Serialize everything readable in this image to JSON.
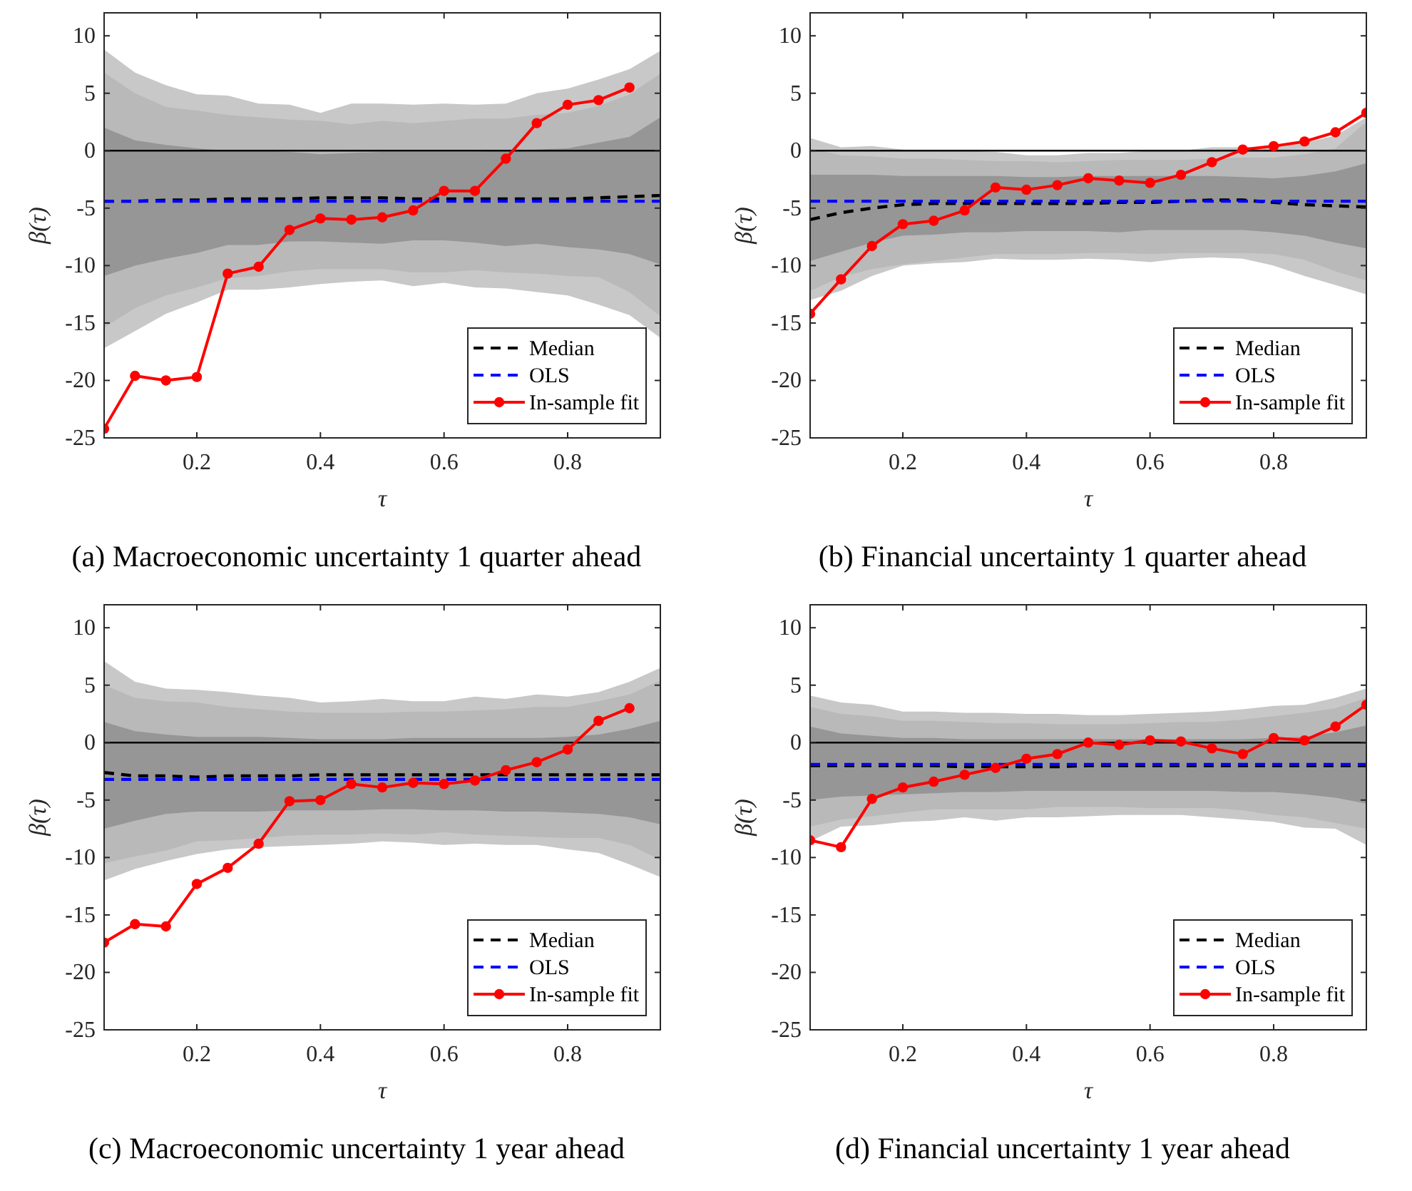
{
  "chart_data": [
    {
      "type": "line",
      "title": "(a) Macroeconomic uncertainty 1 quarter ahead",
      "xlabel": "τ",
      "ylabel": "β(τ)",
      "x": [
        0.05,
        0.1,
        0.15,
        0.2,
        0.25,
        0.3,
        0.35,
        0.4,
        0.45,
        0.5,
        0.55,
        0.6,
        0.65,
        0.7,
        0.75,
        0.8,
        0.85,
        0.9,
        0.95
      ],
      "xlim": [
        0.05,
        0.95
      ],
      "xticks": [
        0.2,
        0.4,
        0.6,
        0.8
      ],
      "ylim": [
        -25,
        12
      ],
      "yticks": [
        -25,
        -20,
        -15,
        -10,
        -5,
        0,
        5,
        10
      ],
      "grid": false,
      "legend": "bottom right",
      "ref_lines": [
        {
          "axis": "y",
          "value": 0,
          "color": "#000000"
        }
      ],
      "series": [
        {
          "color": "#c8c8c8",
          "values": [
            null,
            null,
            null,
            null,
            null,
            null,
            null,
            null,
            null,
            null,
            null,
            null,
            null,
            null,
            null,
            null,
            null,
            null,
            null
          ],
          "lower": [
            -17.2,
            -15.7,
            -14.2,
            -13.2,
            -12.1,
            -12.1,
            -11.9,
            -11.6,
            -11.4,
            -11.3,
            -11.8,
            -11.5,
            -11.9,
            -12,
            -12.3,
            -12.6,
            -13.4,
            -14.3,
            -16.3
          ],
          "upper": [
            8.8,
            6.8,
            5.7,
            4.9,
            4.8,
            4.1,
            4,
            3.3,
            4.1,
            4.1,
            4,
            4.1,
            4,
            4.1,
            5,
            5.4,
            6.2,
            7.1,
            8.7
          ]
        },
        {
          "color": "#b9b9b9",
          "values": [
            null,
            null,
            null,
            null,
            null,
            null,
            null,
            null,
            null,
            null,
            null,
            null,
            null,
            null,
            null,
            null,
            null,
            null,
            null
          ],
          "lower": [
            -15.4,
            -13.7,
            -12.6,
            -11.9,
            -11.1,
            -10.9,
            -10.5,
            -10.3,
            -10.3,
            -10.3,
            -10.6,
            -10.6,
            -10.4,
            -10.6,
            -10.7,
            -10.9,
            -11,
            -12.3,
            -14.4
          ],
          "upper": [
            6.8,
            5,
            3.8,
            3.5,
            3.1,
            2.9,
            2.7,
            2.6,
            2.3,
            2.6,
            2.4,
            2.6,
            2.8,
            2.8,
            3.1,
            3.3,
            3.9,
            4.9,
            6.7
          ]
        },
        {
          "color": "#969696",
          "values": [
            null,
            null,
            null,
            null,
            null,
            null,
            null,
            null,
            null,
            null,
            null,
            null,
            null,
            null,
            null,
            null,
            null,
            null,
            null
          ],
          "lower": [
            -10.9,
            -10,
            -9.4,
            -8.9,
            -8.2,
            -8.2,
            -7.9,
            -7.9,
            -8,
            -8.1,
            -7.8,
            -7.8,
            -8,
            -8.3,
            -8.1,
            -8.4,
            -8.6,
            -9,
            -9.9
          ],
          "upper": [
            2,
            0.9,
            0.5,
            0.2,
            0,
            0,
            -0.1,
            -0.3,
            -0.2,
            -0.1,
            -0.1,
            -0.1,
            -0.1,
            0,
            0.1,
            0.2,
            0.7,
            1.2,
            2.9
          ]
        },
        {
          "name": "Median",
          "color": "#000000",
          "line_style": "dashed",
          "marker": "none",
          "values": [
            -4.4,
            -4.4,
            -4.3,
            -4.3,
            -4.2,
            -4.2,
            -4.2,
            -4.1,
            -4.1,
            -4.1,
            -4.2,
            -4.2,
            -4.2,
            -4.2,
            -4.2,
            -4.2,
            -4.1,
            -4.0,
            -3.9
          ]
        },
        {
          "name": "OLS",
          "color": "#0000ff",
          "line_style": "dashed",
          "marker": "none",
          "values": [
            -4.4,
            -4.4,
            -4.4,
            -4.4,
            -4.4,
            -4.4,
            -4.4,
            -4.4,
            -4.4,
            -4.4,
            -4.4,
            -4.4,
            -4.4,
            -4.4,
            -4.4,
            -4.4,
            -4.4,
            -4.4,
            -4.4
          ]
        },
        {
          "name": "In-sample fit",
          "color": "#ff0000",
          "line_style": "solid",
          "marker": "circle",
          "values": [
            -24.2,
            -19.6,
            -20.0,
            -19.7,
            -10.7,
            -10.1,
            -6.9,
            -5.9,
            -6.0,
            -5.8,
            -5.2,
            -3.5,
            -3.5,
            -0.7,
            2.4,
            4.0,
            4.4,
            5.5,
            null
          ]
        }
      ]
    },
    {
      "type": "line",
      "title": "(b) Financial uncertainty 1 quarter ahead",
      "xlabel": "τ",
      "ylabel": "β(τ)",
      "x": [
        0.05,
        0.1,
        0.15,
        0.2,
        0.25,
        0.3,
        0.35,
        0.4,
        0.45,
        0.5,
        0.55,
        0.6,
        0.65,
        0.7,
        0.75,
        0.8,
        0.85,
        0.9,
        0.95
      ],
      "xlim": [
        0.05,
        0.95
      ],
      "xticks": [
        0.2,
        0.4,
        0.6,
        0.8
      ],
      "ylim": [
        -25,
        12
      ],
      "yticks": [
        -25,
        -20,
        -15,
        -10,
        -5,
        0,
        5,
        10
      ],
      "grid": false,
      "legend": "bottom right",
      "ref_lines": [
        {
          "axis": "y",
          "value": 0,
          "color": "#000000"
        }
      ],
      "series": [
        {
          "color": "#c8c8c8",
          "values": [
            null,
            null,
            null,
            null,
            null,
            null,
            null,
            null,
            null,
            null,
            null,
            null,
            null,
            null,
            null,
            null,
            null,
            null,
            null
          ],
          "lower": [
            -13,
            -12.2,
            -10.9,
            -10,
            -9.8,
            -9.7,
            -9.4,
            -9.5,
            -9.5,
            -9.4,
            -9.5,
            -9.7,
            -9.4,
            -9.3,
            -9.4,
            -10,
            -10.9,
            -11.7,
            -12.5
          ],
          "upper": [
            1.1,
            0.3,
            0.4,
            0.1,
            0,
            0,
            -0.1,
            -0.4,
            -0.4,
            -0.2,
            -0.2,
            0,
            0,
            0.3,
            0.3,
            0.4,
            0.7,
            1.3,
            2.9
          ]
        },
        {
          "color": "#b9b9b9",
          "values": [
            null,
            null,
            null,
            null,
            null,
            null,
            null,
            null,
            null,
            null,
            null,
            null,
            null,
            null,
            null,
            null,
            null,
            null,
            null
          ],
          "lower": [
            -12.2,
            -11,
            -10.3,
            -9.9,
            -9.6,
            -9.3,
            -9,
            -9,
            -9,
            -8.9,
            -8.9,
            -9,
            -8.9,
            -8.9,
            -8.9,
            -9,
            -9.5,
            -10.5,
            -11.3
          ],
          "upper": [
            0.2,
            -0.4,
            -0.5,
            -0.7,
            -0.7,
            -0.8,
            -0.9,
            -0.9,
            -1,
            -0.9,
            -0.8,
            -0.8,
            -0.8,
            -0.7,
            -0.6,
            -0.6,
            -0.3,
            0.2,
            2.5
          ]
        },
        {
          "color": "#969696",
          "values": [
            null,
            null,
            null,
            null,
            null,
            null,
            null,
            null,
            null,
            null,
            null,
            null,
            null,
            null,
            null,
            null,
            null,
            null,
            null
          ],
          "lower": [
            -9.6,
            -8.8,
            -8,
            -7.4,
            -7.3,
            -7.1,
            -7.1,
            -7,
            -7,
            -7,
            -7.1,
            -6.9,
            -6.9,
            -6.9,
            -6.9,
            -7.1,
            -7.4,
            -8,
            -8.5
          ],
          "upper": [
            -2.1,
            -2.1,
            -2.1,
            -2.2,
            -2.2,
            -2.2,
            -2.2,
            -2.3,
            -2.3,
            -2.2,
            -2.2,
            -2.2,
            -2.2,
            -2.2,
            -2.3,
            -2.4,
            -2.2,
            -1.8,
            -1.1
          ]
        },
        {
          "name": "Median",
          "color": "#000000",
          "line_style": "dashed",
          "marker": "none",
          "values": [
            -6,
            -5.4,
            -5,
            -4.7,
            -4.6,
            -4.6,
            -4.6,
            -4.6,
            -4.6,
            -4.6,
            -4.5,
            -4.5,
            -4.4,
            -4.3,
            -4.3,
            -4.5,
            -4.7,
            -4.8,
            -4.9
          ]
        },
        {
          "name": "OLS",
          "color": "#0000ff",
          "line_style": "dashed",
          "marker": "none",
          "values": [
            -4.4,
            -4.4,
            -4.4,
            -4.4,
            -4.4,
            -4.4,
            -4.4,
            -4.4,
            -4.4,
            -4.4,
            -4.4,
            -4.4,
            -4.4,
            -4.4,
            -4.4,
            -4.4,
            -4.4,
            -4.4,
            -4.4
          ]
        },
        {
          "name": "In-sample fit",
          "color": "#ff0000",
          "line_style": "solid",
          "marker": "circle",
          "values": [
            -14.2,
            -11.2,
            -8.3,
            -6.4,
            -6.1,
            -5.2,
            -3.2,
            -3.4,
            -3.0,
            -2.4,
            -2.6,
            -2.8,
            -2.1,
            -1.0,
            0.1,
            0.4,
            0.8,
            1.6,
            3.3
          ]
        }
      ]
    },
    {
      "type": "line",
      "title": "(c) Macroeconomic uncertainty 1 year ahead",
      "xlabel": "τ",
      "ylabel": "β(τ)",
      "x": [
        0.05,
        0.1,
        0.15,
        0.2,
        0.25,
        0.3,
        0.35,
        0.4,
        0.45,
        0.5,
        0.55,
        0.6,
        0.65,
        0.7,
        0.75,
        0.8,
        0.85,
        0.9,
        0.95
      ],
      "xlim": [
        0.05,
        0.95
      ],
      "xticks": [
        0.2,
        0.4,
        0.6,
        0.8
      ],
      "ylim": [
        -25,
        12
      ],
      "yticks": [
        -25,
        -20,
        -15,
        -10,
        -5,
        0,
        5,
        10
      ],
      "grid": false,
      "legend": "bottom right",
      "ref_lines": [
        {
          "axis": "y",
          "value": 0,
          "color": "#000000"
        }
      ],
      "series": [
        {
          "color": "#c8c8c8",
          "values": [
            null,
            null,
            null,
            null,
            null,
            null,
            null,
            null,
            null,
            null,
            null,
            null,
            null,
            null,
            null,
            null,
            null,
            null,
            null
          ],
          "lower": [
            -12,
            -11,
            -10.3,
            -9.7,
            -9.3,
            -9.1,
            -9,
            -8.9,
            -8.8,
            -8.6,
            -8.7,
            -8.9,
            -8.8,
            -8.9,
            -8.9,
            -9.3,
            -9.6,
            -10.6,
            -11.7
          ],
          "upper": [
            7.1,
            5.3,
            4.7,
            4.6,
            4.4,
            4.1,
            3.9,
            3.5,
            3.6,
            3.8,
            3.6,
            3.6,
            4,
            3.8,
            4.2,
            4,
            4.4,
            5.3,
            6.5
          ]
        },
        {
          "color": "#b9b9b9",
          "values": [
            null,
            null,
            null,
            null,
            null,
            null,
            null,
            null,
            null,
            null,
            null,
            null,
            null,
            null,
            null,
            null,
            null,
            null,
            null
          ],
          "lower": [
            -10.5,
            -9.9,
            -9.4,
            -8.6,
            -8.5,
            -8.3,
            -8.1,
            -8,
            -8,
            -7.9,
            -8,
            -7.8,
            -8,
            -8.1,
            -8.2,
            -8.3,
            -8.3,
            -8.9,
            -10.2
          ],
          "upper": [
            5,
            3.9,
            3.6,
            3.5,
            3.1,
            2.9,
            2.7,
            2.6,
            2.6,
            2.6,
            2.7,
            2.7,
            2.8,
            2.9,
            3.1,
            3.1,
            3.6,
            4.2,
            5.4
          ]
        },
        {
          "color": "#969696",
          "values": [
            null,
            null,
            null,
            null,
            null,
            null,
            null,
            null,
            null,
            null,
            null,
            null,
            null,
            null,
            null,
            null,
            null,
            null,
            null
          ],
          "lower": [
            -7.5,
            -6.8,
            -6.2,
            -6,
            -6,
            -6,
            -5.9,
            -5.9,
            -5.9,
            -5.8,
            -5.8,
            -5.9,
            -5.9,
            -6,
            -6,
            -6.1,
            -6.2,
            -6.5,
            -7.1
          ],
          "upper": [
            1.8,
            1,
            0.7,
            0.5,
            0.5,
            0.5,
            0.4,
            0.3,
            0.3,
            0.3,
            0.4,
            0.4,
            0.4,
            0.4,
            0.4,
            0.5,
            0.7,
            1.2,
            1.9
          ]
        },
        {
          "name": "Median",
          "color": "#000000",
          "line_style": "dashed",
          "marker": "none",
          "values": [
            -2.6,
            -2.9,
            -2.9,
            -3.0,
            -2.9,
            -2.9,
            -2.9,
            -2.8,
            -2.8,
            -2.8,
            -2.8,
            -2.8,
            -2.8,
            -2.8,
            -2.8,
            -2.8,
            -2.8,
            -2.8,
            -2.8
          ]
        },
        {
          "name": "OLS",
          "color": "#0000ff",
          "line_style": "dashed",
          "marker": "none",
          "values": [
            -3.2,
            -3.2,
            -3.2,
            -3.2,
            -3.2,
            -3.2,
            -3.2,
            -3.2,
            -3.2,
            -3.2,
            -3.2,
            -3.2,
            -3.2,
            -3.2,
            -3.2,
            -3.2,
            -3.2,
            -3.2,
            -3.2
          ]
        },
        {
          "name": "In-sample fit",
          "color": "#ff0000",
          "line_style": "solid",
          "marker": "circle",
          "values": [
            -17.4,
            -15.8,
            -16.0,
            -12.3,
            -10.9,
            -8.8,
            -5.1,
            -5.0,
            -3.6,
            -3.9,
            -3.5,
            -3.6,
            -3.3,
            -2.4,
            -1.7,
            -0.6,
            1.9,
            3.0,
            null
          ]
        }
      ]
    },
    {
      "type": "line",
      "title": "(d) Financial uncertainty 1 year ahead",
      "xlabel": "τ",
      "ylabel": "β(τ)",
      "x": [
        0.05,
        0.1,
        0.15,
        0.2,
        0.25,
        0.3,
        0.35,
        0.4,
        0.45,
        0.5,
        0.55,
        0.6,
        0.65,
        0.7,
        0.75,
        0.8,
        0.85,
        0.9,
        0.95
      ],
      "xlim": [
        0.05,
        0.95
      ],
      "xticks": [
        0.2,
        0.4,
        0.6,
        0.8
      ],
      "ylim": [
        -25,
        12
      ],
      "yticks": [
        -25,
        -20,
        -15,
        -10,
        -5,
        0,
        5,
        10
      ],
      "grid": false,
      "legend": "bottom right",
      "ref_lines": [
        {
          "axis": "y",
          "value": 0,
          "color": "#000000"
        }
      ],
      "series": [
        {
          "color": "#c8c8c8",
          "values": [
            null,
            null,
            null,
            null,
            null,
            null,
            null,
            null,
            null,
            null,
            null,
            null,
            null,
            null,
            null,
            null,
            null,
            null,
            null
          ],
          "lower": [
            -8.6,
            -7.3,
            -7.2,
            -6.9,
            -6.8,
            -6.5,
            -6.8,
            -6.5,
            -6.5,
            -6.4,
            -6.3,
            -6.3,
            -6.3,
            -6.5,
            -6.7,
            -6.9,
            -7.4,
            -7.5,
            -8.9
          ],
          "upper": [
            4.1,
            3.5,
            3.3,
            2.7,
            2.7,
            2.6,
            2.6,
            2.5,
            2.5,
            2.4,
            2.4,
            2.5,
            2.6,
            2.7,
            2.9,
            3.2,
            3.3,
            3.9,
            4.7
          ]
        },
        {
          "color": "#b9b9b9",
          "values": [
            null,
            null,
            null,
            null,
            null,
            null,
            null,
            null,
            null,
            null,
            null,
            null,
            null,
            null,
            null,
            null,
            null,
            null,
            null
          ],
          "lower": [
            -7.3,
            -6.7,
            -6.4,
            -6.1,
            -5.8,
            -5.8,
            -5.8,
            -5.8,
            -5.6,
            -5.6,
            -5.6,
            -5.7,
            -5.7,
            -5.7,
            -5.9,
            -6.3,
            -6.5,
            -7,
            -7.5
          ],
          "upper": [
            3.1,
            2.5,
            2.3,
            1.9,
            1.9,
            1.8,
            1.7,
            1.7,
            1.6,
            1.6,
            1.6,
            1.7,
            1.8,
            1.8,
            2,
            2.3,
            2.6,
            3,
            3.9
          ]
        },
        {
          "color": "#969696",
          "values": [
            null,
            null,
            null,
            null,
            null,
            null,
            null,
            null,
            null,
            null,
            null,
            null,
            null,
            null,
            null,
            null,
            null,
            null,
            null
          ],
          "lower": [
            -5,
            -4.7,
            -4.6,
            -4.5,
            -4.4,
            -4.3,
            -4.3,
            -4.2,
            -4.2,
            -4.2,
            -4.2,
            -4.2,
            -4.2,
            -4.2,
            -4.3,
            -4.3,
            -4.5,
            -4.8,
            -5.3
          ],
          "upper": [
            1.4,
            0.8,
            0.6,
            0.4,
            0.4,
            0.3,
            0.3,
            0.3,
            0.3,
            0.3,
            0.3,
            0.3,
            0.3,
            0.3,
            0.3,
            0.4,
            0.5,
            0.9,
            1.5
          ]
        },
        {
          "name": "Median",
          "color": "#000000",
          "line_style": "dashed",
          "marker": "none",
          "values": [
            -2.0,
            -2.0,
            -2.0,
            -2.0,
            -2.0,
            -2.1,
            -2.1,
            -2.1,
            -2.1,
            -2.0,
            -2.0,
            -2.0,
            -2.0,
            -2.0,
            -2.0,
            -2.0,
            -2.0,
            -2.0,
            -2.0
          ]
        },
        {
          "name": "OLS",
          "color": "#0000ff",
          "line_style": "dashed",
          "marker": "none",
          "values": [
            -1.9,
            -1.9,
            -1.9,
            -1.9,
            -1.9,
            -1.9,
            -1.9,
            -1.9,
            -1.9,
            -1.9,
            -1.9,
            -1.9,
            -1.9,
            -1.9,
            -1.9,
            -1.9,
            -1.9,
            -1.9,
            -1.9
          ]
        },
        {
          "name": "In-sample fit",
          "color": "#ff0000",
          "line_style": "solid",
          "marker": "circle",
          "values": [
            -8.5,
            -9.1,
            -4.9,
            -3.9,
            -3.4,
            -2.8,
            -2.2,
            -1.4,
            -1.0,
            0.0,
            -0.2,
            0.2,
            0.1,
            -0.5,
            -1.0,
            0.4,
            0.2,
            1.4,
            3.3
          ]
        }
      ]
    }
  ]
}
